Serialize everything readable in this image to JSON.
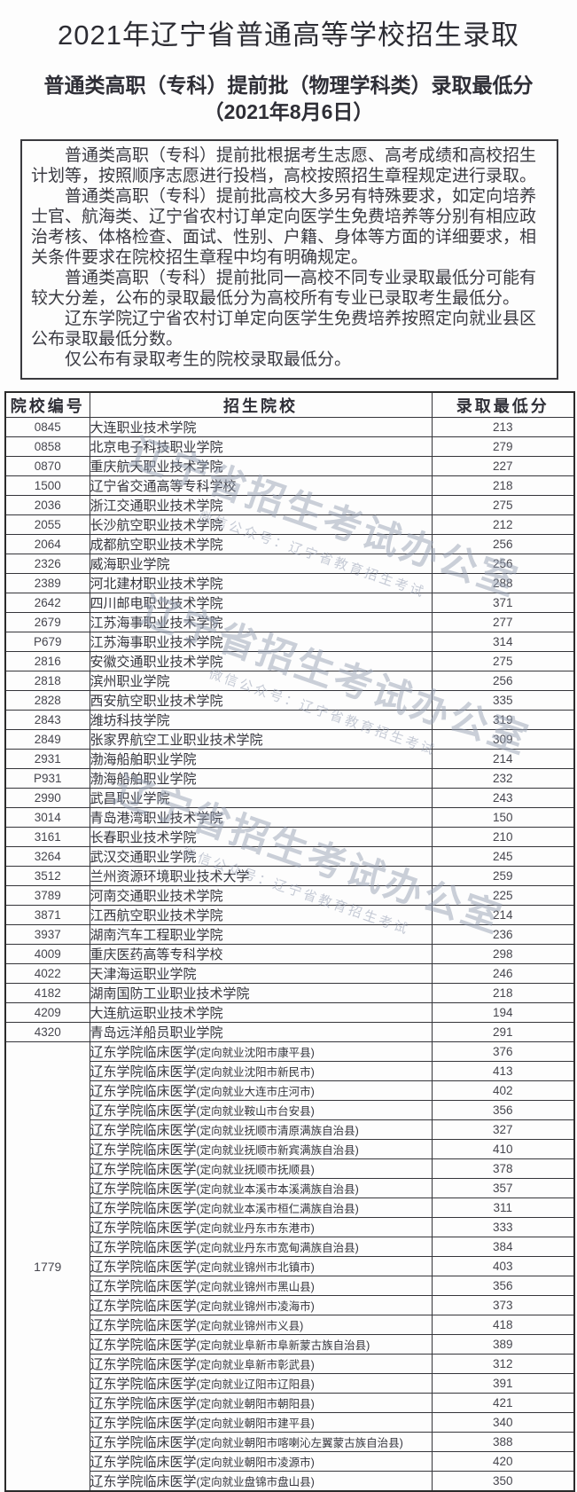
{
  "page": {
    "title": "2021年辽宁省普通高等学校招生录取",
    "subtitle_line1": "普通类高职（专科）提前批（物理学科类）录取最低分",
    "subtitle_line2": "（2021年8月6日）"
  },
  "notice": {
    "paragraphs": [
      "普通类高职（专科）提前批根据考生志愿、高考成绩和高校招生计划等，按照顺序志愿进行投档，高校按照招生章程规定进行录取。",
      "普通类高职（专科）提前批高校大多另有特殊要求，如定向培养士官、航海类、辽宁省农村订单定向医学生免费培养等分别有相应政治考核、体格检查、面试、性别、户籍、身体等方面的详细要求，相关条件要求在院校招生章程中均有明确规定。",
      "普通类高职（专科）提前批同一高校不同专业录取最低分可能有较大分差，公布的录取最低分为高校所有专业已录取考生最低分。",
      "辽东学院辽宁省农村订单定向医学生免费培养按照定向就业县区公布录取最低分数。",
      "仅公布有录取考生的院校录取最低分。"
    ]
  },
  "watermark": {
    "main": "辽宁省招生考试办公室",
    "sub": "微信公众号：辽宁省教育招生考试"
  },
  "table": {
    "headers": [
      "院校编号",
      "招生院校",
      "录取最低分"
    ],
    "rows": [
      {
        "code": "0845",
        "school": "大连职业技术学院",
        "score": "213"
      },
      {
        "code": "0858",
        "school": "北京电子科技职业学院",
        "score": "279"
      },
      {
        "code": "0870",
        "school": "重庆航天职业技术学院",
        "score": "227"
      },
      {
        "code": "1500",
        "school": "辽宁省交通高等专科学校",
        "score": "218"
      },
      {
        "code": "2036",
        "school": "浙江交通职业技术学院",
        "score": "275"
      },
      {
        "code": "2055",
        "school": "长沙航空职业技术学院",
        "score": "212"
      },
      {
        "code": "2064",
        "school": "成都航空职业技术学院",
        "score": "256"
      },
      {
        "code": "2326",
        "school": "威海职业学院",
        "score": "256"
      },
      {
        "code": "2389",
        "school": "河北建材职业技术学院",
        "score": "288"
      },
      {
        "code": "2642",
        "school": "四川邮电职业技术学院",
        "score": "371"
      },
      {
        "code": "2679",
        "school": "江苏海事职业技术学院",
        "score": "277"
      },
      {
        "code": "P679",
        "school": "江苏海事职业技术学院",
        "score": "314"
      },
      {
        "code": "2816",
        "school": "安徽交通职业技术学院",
        "score": "275"
      },
      {
        "code": "2818",
        "school": "滨州职业学院",
        "score": "256"
      },
      {
        "code": "2828",
        "school": "西安航空职业技术学院",
        "score": "335"
      },
      {
        "code": "2843",
        "school": "潍坊科技学院",
        "score": "319"
      },
      {
        "code": "2849",
        "school": "张家界航空工业职业技术学院",
        "score": "309"
      },
      {
        "code": "2931",
        "school": "渤海船舶职业学院",
        "score": "214"
      },
      {
        "code": "P931",
        "school": "渤海船舶职业学院",
        "score": "232"
      },
      {
        "code": "2990",
        "school": "武昌职业学院",
        "score": "243"
      },
      {
        "code": "3014",
        "school": "青岛港湾职业技术学院",
        "score": "150"
      },
      {
        "code": "3161",
        "school": "长春职业技术学院",
        "score": "210"
      },
      {
        "code": "3264",
        "school": "武汉交通职业学院",
        "score": "245"
      },
      {
        "code": "3512",
        "school": "兰州资源环境职业技术大学",
        "score": "259"
      },
      {
        "code": "3789",
        "school": "河南交通职业技术学院",
        "score": "225"
      },
      {
        "code": "3871",
        "school": "江西航空职业技术学院",
        "score": "214"
      },
      {
        "code": "3937",
        "school": "湖南汽车工程职业学院",
        "score": "236"
      },
      {
        "code": "4009",
        "school": "重庆医药高等专科学校",
        "score": "298"
      },
      {
        "code": "4022",
        "school": "天津海运职业学院",
        "score": "246"
      },
      {
        "code": "4182",
        "school": "湖南国防工业职业技术学院",
        "score": "218"
      },
      {
        "code": "4209",
        "school": "大连航运职业技术学院",
        "score": "194"
      },
      {
        "code": "4320",
        "school": "青岛远洋船员职业学院",
        "score": "291"
      }
    ],
    "group": {
      "code": "1779",
      "rows": [
        {
          "school": "辽东学院临床医学(定向就业沈阳市康平县)",
          "score": "376"
        },
        {
          "school": "辽东学院临床医学(定向就业沈阳市新民市)",
          "score": "413"
        },
        {
          "school": "辽东学院临床医学(定向就业大连市庄河市)",
          "score": "402"
        },
        {
          "school": "辽东学院临床医学(定向就业鞍山市台安县)",
          "score": "356"
        },
        {
          "school": "辽东学院临床医学(定向就业抚顺市清原满族自治县)",
          "score": "327"
        },
        {
          "school": "辽东学院临床医学(定向就业抚顺市新宾满族自治县)",
          "score": "410"
        },
        {
          "school": "辽东学院临床医学(定向就业抚顺市抚顺县)",
          "score": "378"
        },
        {
          "school": "辽东学院临床医学(定向就业本溪市本溪满族自治县)",
          "score": "357"
        },
        {
          "school": "辽东学院临床医学(定向就业本溪市桓仁满族自治县)",
          "score": "311"
        },
        {
          "school": "辽东学院临床医学(定向就业丹东市东港市)",
          "score": "333"
        },
        {
          "school": "辽东学院临床医学(定向就业丹东市宽甸满族自治县)",
          "score": "384"
        },
        {
          "school": "辽东学院临床医学(定向就业锦州市北镇市)",
          "score": "403"
        },
        {
          "school": "辽东学院临床医学(定向就业锦州市黑山县)",
          "score": "356"
        },
        {
          "school": "辽东学院临床医学(定向就业锦州市凌海市)",
          "score": "373"
        },
        {
          "school": "辽东学院临床医学(定向就业锦州市义县)",
          "score": "418"
        },
        {
          "school": "辽东学院临床医学(定向就业阜新市阜新蒙古族自治县)",
          "score": "389"
        },
        {
          "school": "辽东学院临床医学(定向就业阜新市彰武县)",
          "score": "312"
        },
        {
          "school": "辽东学院临床医学(定向就业辽阳市辽阳县)",
          "score": "391"
        },
        {
          "school": "辽东学院临床医学(定向就业朝阳市朝阳县)",
          "score": "421"
        },
        {
          "school": "辽东学院临床医学(定向就业朝阳市建平县)",
          "score": "340"
        },
        {
          "school": "辽东学院临床医学(定向就业朝阳市喀喇沁左翼蒙古族自治县)",
          "score": "388"
        },
        {
          "school": "辽东学院临床医学(定向就业朝阳市凌源市)",
          "score": "420"
        },
        {
          "school": "辽东学院临床医学(定向就业盘锦市盘山县)",
          "score": "350"
        }
      ]
    }
  }
}
